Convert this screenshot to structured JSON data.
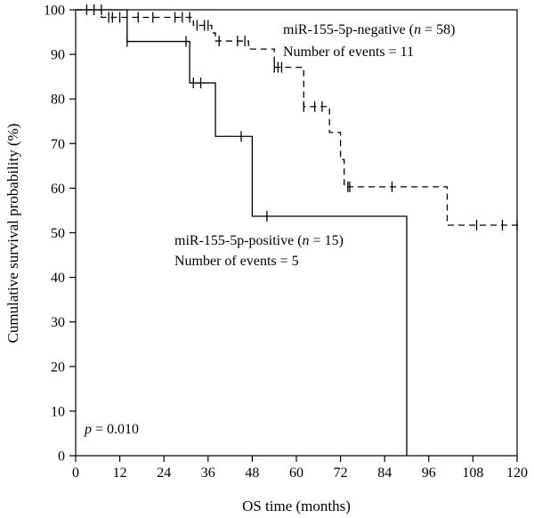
{
  "chart_data": {
    "type": "line",
    "subtype": "kaplan-meier step",
    "xlabel": "OS time (months)",
    "ylabel": "Cumulative survival probability (%)",
    "xlim": [
      0,
      120
    ],
    "ylim": [
      0,
      100
    ],
    "xticks": [
      "0",
      "12",
      "24",
      "36",
      "48",
      "60",
      "72",
      "84",
      "96",
      "108",
      "120"
    ],
    "yticks": [
      "0",
      "10",
      "20",
      "30",
      "40",
      "50",
      "60",
      "70",
      "80",
      "90",
      "100"
    ],
    "grid": false,
    "pvalue": {
      "prefix": "p",
      "text": " = 0.010"
    },
    "series": [
      {
        "name": "miR-155-5p-negative",
        "n_label": "n",
        "n_text": " = 58)",
        "events_label": "Number of events = 11",
        "style": "dashed",
        "steps": [
          [
            0,
            100
          ],
          [
            7,
            98.3
          ],
          [
            32,
            96.5
          ],
          [
            37,
            94.8
          ],
          [
            38,
            93.0
          ],
          [
            47,
            91.2
          ],
          [
            54,
            87.1
          ],
          [
            62,
            78.3
          ],
          [
            69,
            72.5
          ],
          [
            72,
            66.4
          ],
          [
            73,
            60.3
          ],
          [
            101,
            51.7
          ],
          [
            121,
            51.7
          ]
        ],
        "censors": [
          [
            3,
            100
          ],
          [
            5,
            100
          ],
          [
            7,
            100
          ],
          [
            9,
            98.3
          ],
          [
            10,
            98.3
          ],
          [
            12,
            98.3
          ],
          [
            17,
            98.3
          ],
          [
            21,
            98.3
          ],
          [
            27,
            98.3
          ],
          [
            29,
            98.3
          ],
          [
            31,
            98.3
          ],
          [
            33,
            96.5
          ],
          [
            35,
            96.5
          ],
          [
            36,
            96.5
          ],
          [
            39,
            93.0
          ],
          [
            44,
            93.0
          ],
          [
            46,
            93.0
          ],
          [
            54,
            87.1
          ],
          [
            55,
            87.1
          ],
          [
            56,
            87.1
          ],
          [
            62,
            78.3
          ],
          [
            65,
            78.3
          ],
          [
            67,
            78.3
          ],
          [
            74,
            60.3
          ],
          [
            74.5,
            60.3
          ],
          [
            86,
            60.3
          ],
          [
            109,
            51.7
          ],
          [
            116,
            51.7
          ],
          [
            120,
            51.7
          ]
        ]
      },
      {
        "name": "miR-155-5p-positive",
        "n_label": "n",
        "n_text": " = 15)",
        "events_label": "Number of events = 5",
        "style": "solid",
        "steps": [
          [
            0,
            100
          ],
          [
            14,
            92.9
          ],
          [
            31,
            83.6
          ],
          [
            38,
            71.6
          ],
          [
            48,
            53.7
          ],
          [
            90,
            0
          ]
        ],
        "censors": [
          [
            14,
            92.9
          ],
          [
            30,
            92.9
          ],
          [
            32,
            83.6
          ],
          [
            34,
            83.6
          ],
          [
            45,
            71.6
          ],
          [
            52,
            53.7
          ]
        ]
      }
    ]
  }
}
